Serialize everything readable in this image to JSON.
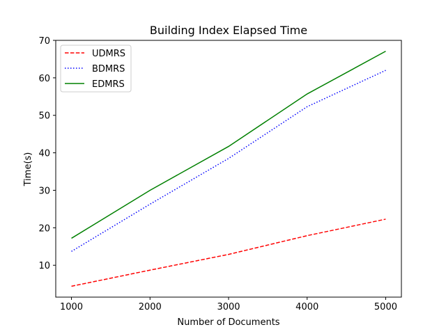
{
  "chart_data": {
    "type": "line",
    "title": "Building Index Elapsed Time",
    "xlabel": "Number of Documents",
    "ylabel": "Time(s)",
    "x": [
      1000,
      2000,
      3000,
      4000,
      5000
    ],
    "xlim": [
      800,
      5200
    ],
    "ylim": [
      1.5,
      70
    ],
    "xticks": [
      1000,
      2000,
      3000,
      4000,
      5000
    ],
    "yticks": [
      10,
      20,
      30,
      40,
      50,
      60,
      70
    ],
    "grid": false,
    "legend_position": "top-left",
    "series": [
      {
        "name": "UDMRS",
        "color": "#ff0000",
        "style": "dashed",
        "values": [
          4.4,
          8.7,
          12.9,
          17.9,
          22.3
        ]
      },
      {
        "name": "BDMRS",
        "color": "#0000ff",
        "style": "dotted",
        "values": [
          13.7,
          26.3,
          38.5,
          52.3,
          62.0
        ]
      },
      {
        "name": "EDMRS",
        "color": "#008000",
        "style": "solid",
        "values": [
          17.2,
          30.0,
          41.7,
          55.7,
          67.1
        ]
      }
    ]
  }
}
